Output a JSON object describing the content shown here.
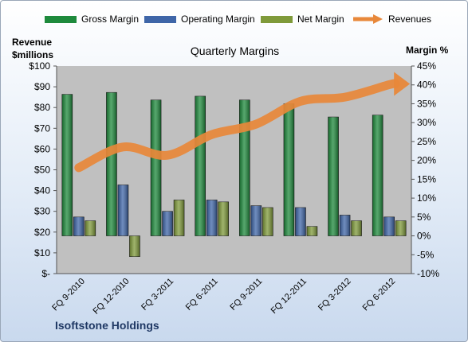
{
  "legend": {
    "gross_margin": "Gross Margin",
    "operating_margin": "Operating Margin",
    "net_margin": "Net Margin",
    "revenues": "Revenues"
  },
  "left_axis_title": {
    "line1": "Revenue",
    "line2": "$millions"
  },
  "right_axis_title": "Margin %",
  "company": "Isoftstone Holdings",
  "colors": {
    "gross": "#1e8a3c",
    "operating": "#3f66a8",
    "net": "#7f9a3a",
    "revenue": "#e8883a",
    "plot_bg": "#c0c0c0"
  },
  "chart_data": {
    "type": "bar",
    "title": "Quarterly Margins",
    "categories": [
      "FQ 9-2010",
      "FQ 12-2010",
      "FQ 3-2011",
      "FQ 6-2011",
      "FQ 9-2011",
      "FQ 12-2011",
      "FQ 3-2012",
      "FQ 6-2012"
    ],
    "series": [
      {
        "name": "Gross Margin",
        "axis": "right",
        "values": [
          37.5,
          38,
          36,
          37,
          36,
          35,
          31.5,
          32
        ]
      },
      {
        "name": "Operating Margin",
        "axis": "right",
        "values": [
          5,
          13.5,
          6.5,
          9.5,
          8,
          7.5,
          5.5,
          5
        ]
      },
      {
        "name": "Net Margin",
        "axis": "right",
        "values": [
          4,
          -5.5,
          9.5,
          9,
          7.5,
          2.5,
          4,
          4
        ]
      },
      {
        "name": "Revenues",
        "axis": "left",
        "type": "line",
        "values": [
          51,
          61,
          57,
          67,
          72,
          83,
          85,
          91
        ]
      }
    ],
    "left_axis": {
      "label": "Revenue $millions",
      "ylim": [
        0,
        100
      ],
      "ticks": [
        "$-",
        "$10",
        "$20",
        "$30",
        "$40",
        "$50",
        "$60",
        "$70",
        "$80",
        "$90",
        "$100"
      ]
    },
    "right_axis": {
      "label": "Margin %",
      "ylim": [
        -10,
        45
      ],
      "ticks": [
        "-10%",
        "-5%",
        "0%",
        "5%",
        "10%",
        "15%",
        "20%",
        "25%",
        "30%",
        "35%",
        "40%",
        "45%"
      ]
    },
    "grid": false,
    "legend_position": "top"
  }
}
